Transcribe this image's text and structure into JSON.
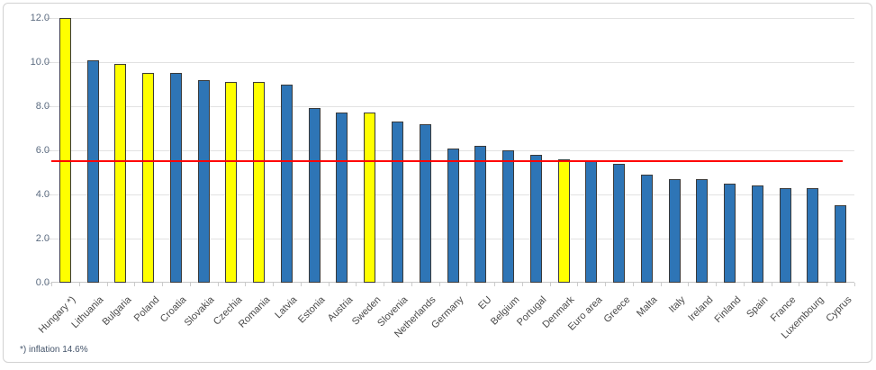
{
  "chart": {
    "footnote": "*) inflation 14.6%"
  },
  "chart_data": {
    "type": "bar",
    "title": "",
    "xlabel": "",
    "ylabel": "",
    "categories": [
      "Hungary *)",
      "Lithuania",
      "Bulgaria",
      "Poland",
      "Croatia",
      "Slovakia",
      "Czechia",
      "Romania",
      "Latvia",
      "Estonia",
      "Austria",
      "Sweden",
      "Slovenia",
      "Netherlands",
      "Germany",
      "EU",
      "Belgium",
      "Portugal",
      "Denmark",
      "Euro area",
      "Greece",
      "Malta",
      "Italy",
      "Ireland",
      "Finland",
      "Spain",
      "France",
      "Luxembourg",
      "Cyprus"
    ],
    "values": [
      12.0,
      10.1,
      9.9,
      9.5,
      9.5,
      9.2,
      9.1,
      9.1,
      9.0,
      7.9,
      7.7,
      7.7,
      7.3,
      7.2,
      6.1,
      6.2,
      6.0,
      5.8,
      5.6,
      5.5,
      5.4,
      4.9,
      4.7,
      4.7,
      4.5,
      4.4,
      4.3,
      4.3,
      3.5
    ],
    "truncated_bars": [
      {
        "category": "Hungary *)",
        "shown_at": 12.0,
        "actual_value_pct": "14.6%"
      }
    ],
    "highlight_indexes": [
      0,
      2,
      3,
      6,
      7,
      11,
      18
    ],
    "reference_line": {
      "value": 5.5,
      "color": "#ff0000"
    },
    "ylim": [
      0,
      12
    ],
    "yticks": [
      "12.0",
      "10.0",
      "8.0",
      "6.0",
      "4.0",
      "2.0",
      "0.0"
    ],
    "grid": true,
    "legend": false,
    "footnote": "*) inflation 14.6%",
    "colors": {
      "bar_fill": "#2e75b6",
      "bar_highlight_fill": "#ffff00",
      "bar_outline": "#3a3a3a",
      "gridline": "#e2e2e2",
      "axis_line": "#c8c8c8",
      "y_label_text": "#5b6b80",
      "x_label_text": "#4a4a4a",
      "footnote_text": "#44546a",
      "background": "#ffffff"
    }
  }
}
